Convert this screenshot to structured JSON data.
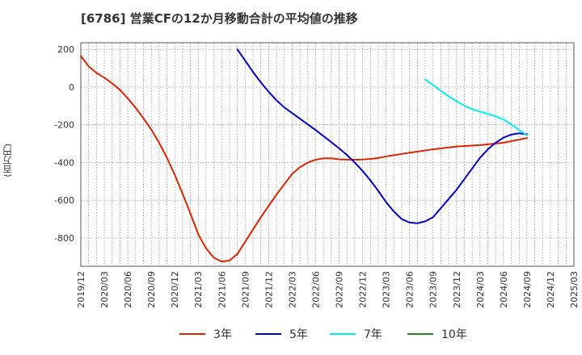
{
  "title": "[6786]  営業CFの12か月移動合計の平均値の推移",
  "chart_data": {
    "type": "line",
    "title": "[6786]  営業CFの12か月移動合計の平均値の推移",
    "xlabel": "",
    "ylabel": "(百万円)",
    "ylim": [
      -950,
      235
    ],
    "yticks": [
      200,
      0,
      -200,
      -400,
      -600,
      -800
    ],
    "x_ticks": [
      "2019/12",
      "2020/03",
      "2020/06",
      "2020/09",
      "2020/12",
      "2021/03",
      "2021/06",
      "2021/09",
      "2021/12",
      "2022/03",
      "2022/06",
      "2022/09",
      "2022/12",
      "2023/03",
      "2023/06",
      "2023/09",
      "2023/12",
      "2024/03",
      "2024/06",
      "2024/09",
      "2024/12",
      "2025/03"
    ],
    "grid": true,
    "legend": "bottom",
    "series": [
      {
        "name": "3年",
        "color": "#dd2200",
        "x": [
          "2019/12",
          "2020/01",
          "2020/02",
          "2020/03",
          "2020/04",
          "2020/05",
          "2020/06",
          "2020/07",
          "2020/08",
          "2020/09",
          "2020/10",
          "2020/11",
          "2020/12",
          "2021/01",
          "2021/02",
          "2021/03",
          "2021/04",
          "2021/05",
          "2021/06",
          "2021/07",
          "2021/08",
          "2021/09",
          "2021/10",
          "2021/11",
          "2021/12",
          "2022/01",
          "2022/02",
          "2022/03",
          "2022/04",
          "2022/05",
          "2022/06",
          "2022/07",
          "2022/08",
          "2022/09",
          "2022/10",
          "2022/11",
          "2022/12",
          "2023/01",
          "2023/02",
          "2023/03",
          "2023/06",
          "2023/09",
          "2023/12",
          "2024/03",
          "2024/06",
          "2024/09"
        ],
        "y": [
          165,
          110,
          75,
          50,
          20,
          -15,
          -60,
          -110,
          -165,
          -225,
          -295,
          -375,
          -465,
          -565,
          -670,
          -780,
          -855,
          -905,
          -925,
          -920,
          -885,
          -820,
          -755,
          -690,
          -630,
          -570,
          -515,
          -460,
          -425,
          -400,
          -385,
          -378,
          -378,
          -383,
          -385,
          -385,
          -384,
          -381,
          -376,
          -368,
          -348,
          -330,
          -315,
          -308,
          -295,
          -270
        ]
      },
      {
        "name": "5年",
        "color": "#0000cc",
        "x": [
          "2021/08",
          "2021/09",
          "2021/10",
          "2021/11",
          "2021/12",
          "2022/01",
          "2022/02",
          "2022/03",
          "2022/04",
          "2022/05",
          "2022/06",
          "2022/07",
          "2022/08",
          "2022/09",
          "2022/10",
          "2022/11",
          "2022/12",
          "2023/01",
          "2023/02",
          "2023/03",
          "2023/04",
          "2023/05",
          "2023/06",
          "2023/07",
          "2023/08",
          "2023/09",
          "2023/12",
          "2024/03",
          "2024/04",
          "2024/05",
          "2024/06",
          "2024/07",
          "2024/08",
          "2024/09"
        ],
        "y": [
          200,
          140,
          80,
          25,
          -25,
          -70,
          -108,
          -138,
          -168,
          -198,
          -228,
          -260,
          -292,
          -325,
          -360,
          -400,
          -445,
          -495,
          -550,
          -610,
          -660,
          -700,
          -718,
          -722,
          -712,
          -690,
          -545,
          -375,
          -330,
          -295,
          -268,
          -252,
          -245,
          -250
        ]
      },
      {
        "name": "7年",
        "color": "#00eeee",
        "x": [
          "2023/08",
          "2023/09",
          "2023/10",
          "2023/11",
          "2023/12",
          "2024/01",
          "2024/02",
          "2024/03",
          "2024/04",
          "2024/05",
          "2024/06",
          "2024/07",
          "2024/08",
          "2024/09"
        ],
        "y": [
          40,
          10,
          -20,
          -50,
          -75,
          -98,
          -118,
          -130,
          -142,
          -155,
          -172,
          -198,
          -228,
          -255
        ]
      },
      {
        "name": "10年",
        "color": "#228822",
        "x": [],
        "y": []
      }
    ]
  }
}
